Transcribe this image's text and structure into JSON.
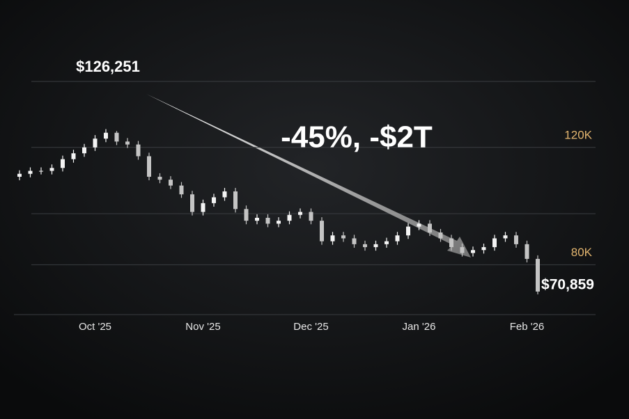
{
  "chart_data": {
    "type": "candlestick",
    "annotations": [
      "$126,251",
      "-45%, -$2T",
      "$70,859"
    ],
    "categories": [
      null,
      null,
      null,
      null,
      null,
      null,
      null,
      "Oct '25",
      null,
      null,
      null,
      null,
      null,
      null,
      null,
      null,
      null,
      "Nov '25",
      null,
      null,
      null,
      null,
      null,
      null,
      null,
      null,
      null,
      "Dec '25",
      null,
      null,
      null,
      null,
      null,
      null,
      null,
      null,
      null,
      "Jan '26",
      null,
      null,
      null,
      null,
      null,
      null,
      null,
      null,
      null,
      "Feb '26",
      null
    ],
    "open": [
      110000,
      111000,
      112000,
      112000,
      113000,
      116000,
      118000,
      120000,
      123000,
      125000,
      122000,
      121000,
      117000,
      110000,
      109000,
      107000,
      104000,
      98000,
      101000,
      103000,
      105000,
      99000,
      95000,
      96000,
      94000,
      95000,
      97000,
      98000,
      95000,
      88000,
      90000,
      89000,
      87000,
      86000,
      87000,
      88000,
      90000,
      93000,
      94000,
      91000,
      89000,
      86000,
      84000,
      85000,
      86000,
      89000,
      90000,
      87000,
      82000
    ],
    "high": [
      112200,
      113200,
      113200,
      114200,
      117200,
      119200,
      121200,
      124200,
      126251,
      125600,
      123200,
      122200,
      118200,
      111200,
      110200,
      108200,
      105200,
      102200,
      104200,
      106200,
      106200,
      100200,
      97200,
      97200,
      96200,
      98200,
      99200,
      99200,
      96200,
      91200,
      91200,
      90200,
      88200,
      88200,
      89200,
      91200,
      94200,
      95200,
      95200,
      92200,
      90200,
      87200,
      86200,
      87200,
      90200,
      91200,
      91200,
      88200,
      83200
    ],
    "low": [
      108800,
      109800,
      110800,
      110800,
      111800,
      114800,
      116800,
      118800,
      121800,
      120800,
      119800,
      115800,
      108800,
      107800,
      105800,
      102800,
      96800,
      96800,
      99800,
      101800,
      97800,
      93800,
      93800,
      92800,
      92800,
      93800,
      95800,
      93800,
      86800,
      86800,
      87800,
      85800,
      84800,
      84800,
      85800,
      86800,
      88800,
      91800,
      89800,
      87800,
      84800,
      82800,
      82800,
      83800,
      84800,
      87800,
      85800,
      80800,
      69900
    ],
    "close": [
      111000,
      112000,
      112000,
      113000,
      116000,
      118000,
      120000,
      123000,
      125000,
      122000,
      121000,
      117000,
      110000,
      109000,
      107000,
      104000,
      98000,
      101000,
      103000,
      105000,
      99000,
      95000,
      96000,
      94000,
      95000,
      97000,
      98000,
      95000,
      88000,
      90000,
      89000,
      87000,
      86000,
      87000,
      88000,
      90000,
      93000,
      94000,
      91000,
      89000,
      86000,
      84000,
      85000,
      86000,
      89000,
      90000,
      87000,
      82000,
      70859
    ],
    "up_color": "#f4f4f4",
    "down_color": "#c4c4c4",
    "tick_label_color": "#e3b56f",
    "ylim": [
      63000,
      142500
    ],
    "yticks": [
      {
        "value": 80000,
        "label": "80K"
      },
      {
        "value": 120000,
        "label": "120K"
      }
    ],
    "grid": true
  }
}
